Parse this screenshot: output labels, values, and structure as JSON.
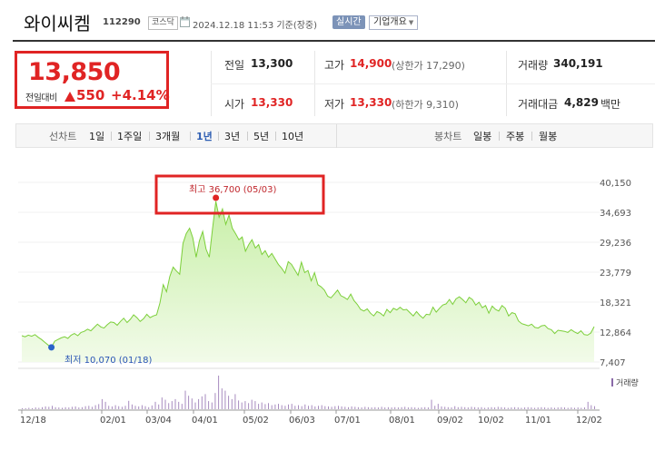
{
  "header": {
    "name": "와이씨켐",
    "code": "112290",
    "market": "코스닥",
    "datetime": "2024.12.18 11:53  기준(장중)",
    "realtime": "실시간",
    "corp_info": "기업개요"
  },
  "quote": {
    "price": "13,850",
    "change_label": "전일대비",
    "change": "550",
    "change_pct": "+4.14%",
    "prev_close_label": "전일",
    "prev_close": "13,300",
    "open_label": "시가",
    "open": "13,330",
    "high_label": "고가",
    "high": "14,900",
    "upper_limit": "(상한가 17,290)",
    "low_label": "저가",
    "low": "13,330",
    "lower_limit": "(하한가 9,310)",
    "volume_label": "거래량",
    "volume": "340,191",
    "amount_label": "거래대금",
    "amount": "4,829",
    "amount_unit": "백만"
  },
  "toolbar": {
    "line_label": "선차트",
    "periods": [
      "1일",
      "1주일",
      "3개월",
      "1년",
      "3년",
      "5년",
      "10년"
    ],
    "selected": "1년",
    "candle_label": "봉차트",
    "candles": [
      "일봉",
      "주봉",
      "월봉"
    ]
  },
  "chart_data": {
    "type": "area",
    "title": "",
    "xlabel": "",
    "ylabel": "",
    "y_ticks": [
      "40,150",
      "34,693",
      "29,236",
      "23,779",
      "18,321",
      "12,864",
      "7,407"
    ],
    "ylim": [
      7407,
      40150
    ],
    "x_ticks": [
      "12/18",
      "02/01",
      "03/04",
      "04/01",
      "05/02",
      "06/03",
      "07/01",
      "08/01",
      "09/02",
      "10/02",
      "11/01",
      "12/02"
    ],
    "max_label": "최고 36,700 (05/03)",
    "min_label": "최저 10,070 (01/18)",
    "volume_label": "거래량",
    "series": [
      {
        "values": [
          12200,
          12000,
          12300,
          12100,
          12400,
          11900,
          11500,
          11000,
          10500,
          10070,
          11200,
          11500,
          11800,
          12000,
          11700,
          12300,
          12600,
          12200,
          12800,
          13000,
          13400,
          13100,
          13700,
          14300,
          13800,
          13600,
          14200,
          14700,
          14600,
          14100,
          14800,
          15400,
          14600,
          15200,
          16000,
          15500,
          14800,
          15300,
          16100,
          15500,
          15800,
          16000,
          18200,
          21500,
          20200,
          23000,
          24700,
          24000,
          23400,
          29000,
          30800,
          31800,
          30000,
          26500,
          29500,
          31200,
          28000,
          26500,
          31800,
          36700,
          33800,
          35300,
          32500,
          34200,
          31800,
          30800,
          29700,
          30200,
          27600,
          28800,
          29700,
          28200,
          28800,
          27000,
          27700,
          26500,
          27200,
          26200,
          25200,
          24500,
          23600,
          25700,
          25200,
          24200,
          23200,
          25600,
          23700,
          24100,
          22200,
          23700,
          21500,
          21100,
          20500,
          19400,
          19100,
          19800,
          20500,
          19500,
          19200,
          18800,
          19800,
          18600,
          17900,
          17000,
          16700,
          17100,
          16300,
          15800,
          16600,
          16300,
          15800,
          17000,
          16400,
          17200,
          16900,
          17400,
          16900,
          17000,
          16400,
          15800,
          16600,
          15900,
          15400,
          16100,
          16000,
          17400,
          16500,
          17200,
          17800,
          18000,
          18800,
          17900,
          18900,
          19300,
          18800,
          18200,
          19200,
          18800,
          17800,
          18300,
          17300,
          17700,
          16300,
          17600,
          17000,
          16700,
          17700,
          17200,
          15800,
          16400,
          16200,
          14900,
          14400,
          14200,
          14000,
          14300,
          13700,
          13600,
          14000,
          14100,
          13500,
          13300,
          12600,
          13200,
          13100,
          13000,
          12800,
          13300,
          12900,
          12600,
          13100,
          12400,
          12300,
          12700,
          13850
        ]
      }
    ],
    "volume": [
      0.03,
      0.03,
      0.04,
      0.03,
      0.05,
      0.04,
      0.06,
      0.08,
      0.07,
      0.1,
      0.06,
      0.05,
      0.04,
      0.06,
      0.05,
      0.07,
      0.08,
      0.05,
      0.06,
      0.09,
      0.1,
      0.07,
      0.12,
      0.15,
      0.3,
      0.22,
      0.1,
      0.08,
      0.12,
      0.09,
      0.07,
      0.1,
      0.25,
      0.14,
      0.1,
      0.08,
      0.12,
      0.09,
      0.06,
      0.11,
      0.22,
      0.14,
      0.35,
      0.28,
      0.18,
      0.24,
      0.3,
      0.22,
      0.16,
      0.55,
      0.4,
      0.32,
      0.2,
      0.3,
      0.38,
      0.45,
      0.24,
      0.2,
      0.48,
      1.0,
      0.62,
      0.55,
      0.4,
      0.3,
      0.45,
      0.26,
      0.2,
      0.24,
      0.18,
      0.28,
      0.24,
      0.16,
      0.2,
      0.15,
      0.18,
      0.12,
      0.14,
      0.16,
      0.12,
      0.1,
      0.14,
      0.16,
      0.1,
      0.12,
      0.09,
      0.14,
      0.1,
      0.12,
      0.08,
      0.1,
      0.12,
      0.09,
      0.08,
      0.07,
      0.09,
      0.1,
      0.08,
      0.07,
      0.06,
      0.08,
      0.07,
      0.06,
      0.05,
      0.07,
      0.06,
      0.05,
      0.06,
      0.05,
      0.07,
      0.05,
      0.06,
      0.05,
      0.06,
      0.05,
      0.06,
      0.07,
      0.05,
      0.06,
      0.05,
      0.04,
      0.05,
      0.06,
      0.05,
      0.28,
      0.1,
      0.16,
      0.08,
      0.07,
      0.06,
      0.05,
      0.09,
      0.06,
      0.07,
      0.06,
      0.05,
      0.07,
      0.06,
      0.05,
      0.06,
      0.04,
      0.05,
      0.06,
      0.05,
      0.07,
      0.06,
      0.05,
      0.04,
      0.05,
      0.06,
      0.05,
      0.04,
      0.05,
      0.06,
      0.05,
      0.04,
      0.05,
      0.06,
      0.05,
      0.04,
      0.05,
      0.04,
      0.05,
      0.06,
      0.05,
      0.04,
      0.05,
      0.04,
      0.05,
      0.04,
      0.05,
      0.22,
      0.12,
      0.09
    ]
  },
  "colors": {
    "up": "#e02424",
    "line": "#7ccf3a",
    "fill_top": "#c8efa8",
    "fill_bottom": "#f2fbe9",
    "selected_tab": "#2f5fb3",
    "min_dot": "#2a63c9",
    "max_dot": "#e02424",
    "volume_bar": "#a78bbf"
  }
}
